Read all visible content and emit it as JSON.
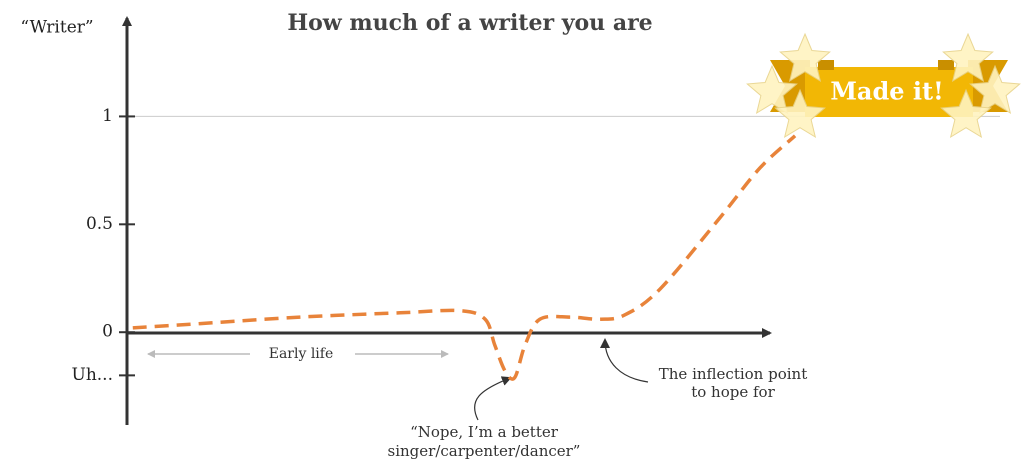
{
  "chart_data": {
    "type": "line",
    "title": "How much of a writer you are",
    "y_label": "“Writer”",
    "x": [
      0.9,
      11.4,
      26.9,
      42.5,
      51.8,
      55.7,
      57.2,
      58.8,
      60.3,
      61.9,
      64.2,
      68.9,
      73.6,
      77.4,
      82.9,
      92.2,
      98.4,
      103.9
    ],
    "series": [
      {
        "color": "#e8833a",
        "values": [
          0.02,
          0.04,
          0.07,
          0.09,
          0.1,
          0.06,
          -0.06,
          -0.18,
          -0.21,
          -0.06,
          0.06,
          0.07,
          0.06,
          0.08,
          0.2,
          0.53,
          0.76,
          0.91
        ]
      }
    ],
    "xlim": [
      0,
      100
    ],
    "ylim": [
      -0.43,
      1.47
    ],
    "yticks": [
      1,
      0.5,
      0,
      {
        "value": -0.2,
        "label": "Uh..."
      }
    ],
    "hlines": [
      1
    ],
    "annotations": [
      {
        "lines": [
          "Early life"
        ]
      },
      {
        "lines": [
          "“Nope, I’m a better",
          "singer/carpenter/dancer”"
        ]
      },
      {
        "lines": [
          "The inflection point",
          "to hope for"
        ]
      },
      {
        "lines": [
          "Made it!"
        ]
      }
    ]
  }
}
